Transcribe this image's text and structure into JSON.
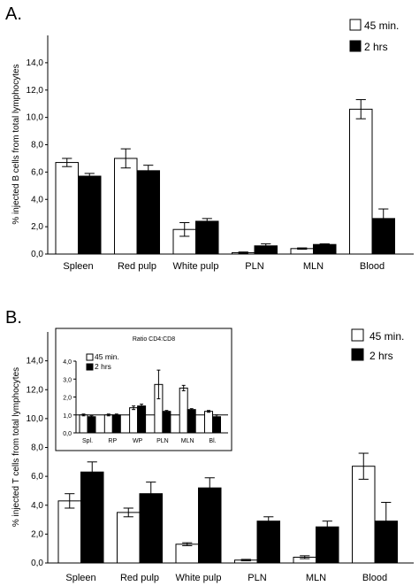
{
  "chart_data": [
    {
      "id": "A",
      "type": "bar",
      "panel_label": "A.",
      "ylabel": "% injected B cells from total lymphocytes",
      "ylim": [
        0,
        16
      ],
      "yticks": [
        "0,0",
        "2,0",
        "4,0",
        "6,0",
        "8,0",
        "10,0",
        "12,0",
        "14,0"
      ],
      "ytick_values": [
        0,
        2,
        4,
        6,
        8,
        10,
        12,
        14
      ],
      "categories": [
        "Spleen",
        "Red pulp",
        "White pulp",
        "PLN",
        "MLN",
        "Blood"
      ],
      "series": [
        {
          "name": "45 min.",
          "color": "#ffffff",
          "values": [
            6.7,
            7.0,
            1.8,
            0.1,
            0.4,
            10.6
          ],
          "errors": [
            0.3,
            0.7,
            0.5,
            0.05,
            0.05,
            0.7
          ]
        },
        {
          "name": "2 hrs",
          "color": "#000000",
          "values": [
            5.7,
            6.1,
            2.4,
            0.6,
            0.7,
            2.6
          ],
          "errors": [
            0.2,
            0.4,
            0.2,
            0.15,
            0.05,
            0.7
          ]
        }
      ],
      "legend_position": "top-right"
    },
    {
      "id": "B",
      "type": "bar",
      "panel_label": "B.",
      "ylabel": "% injected T cells from total lymphocytes",
      "ylim": [
        0,
        16
      ],
      "yticks": [
        "0,0",
        "2,0",
        "4,0",
        "6,0",
        "8,0",
        "10,0",
        "12,0",
        "14,0"
      ],
      "ytick_values": [
        0,
        2,
        4,
        6,
        8,
        10,
        12,
        14
      ],
      "categories": [
        "Spleen",
        "Red pulp",
        "White pulp",
        "PLN",
        "MLN",
        "Blood"
      ],
      "series": [
        {
          "name": "45 min.",
          "color": "#ffffff",
          "values": [
            4.3,
            3.5,
            1.3,
            0.2,
            0.4,
            6.7
          ],
          "errors": [
            0.5,
            0.3,
            0.1,
            0.05,
            0.1,
            0.9
          ]
        },
        {
          "name": "2 hrs",
          "color": "#000000",
          "values": [
            6.3,
            4.8,
            5.2,
            2.9,
            2.5,
            2.9
          ],
          "errors": [
            0.7,
            0.8,
            0.7,
            0.3,
            0.4,
            1.3
          ]
        }
      ],
      "legend_position": "top-right"
    },
    {
      "id": "B-inset",
      "type": "bar",
      "title": "Ratio CD4:CD8",
      "ylim": [
        0,
        4
      ],
      "yticks": [
        "0,0",
        "1,0",
        "2,0",
        "3,0",
        "4,0"
      ],
      "ytick_values": [
        0,
        1,
        2,
        3,
        4
      ],
      "reference_line": 1.0,
      "categories": [
        "Spl.",
        "RP",
        "WP",
        "PLN",
        "MLN",
        "Bl."
      ],
      "series": [
        {
          "name": "45 min.",
          "color": "#ffffff",
          "values": [
            1.0,
            1.0,
            1.4,
            2.7,
            2.5,
            1.2
          ],
          "errors": [
            0.05,
            0.05,
            0.1,
            0.8,
            0.15,
            0.05
          ]
        },
        {
          "name": "2 hrs",
          "color": "#000000",
          "values": [
            0.9,
            1.0,
            1.5,
            1.2,
            1.3,
            0.9
          ],
          "errors": [
            0.05,
            0.05,
            0.1,
            0.05,
            0.05,
            0.1
          ]
        }
      ],
      "legend_position": "top-left"
    }
  ]
}
